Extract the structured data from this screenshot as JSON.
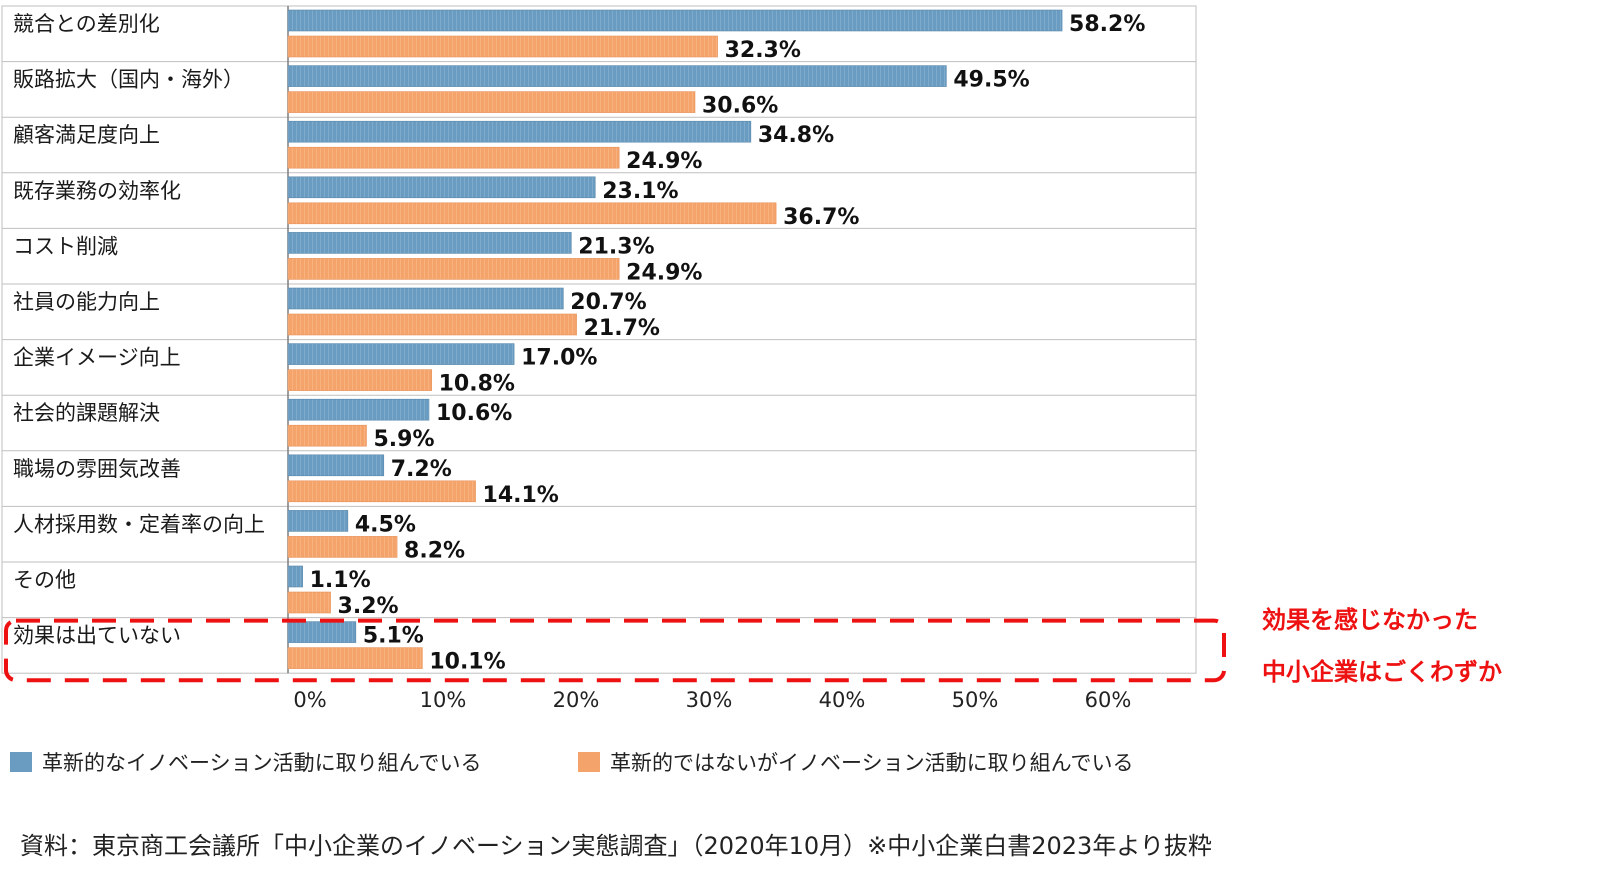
{
  "chart_data": {
    "type": "bar",
    "orientation": "horizontal",
    "categories": [
      "競合との差別化",
      "販路拡大（国内・海外）",
      "顧客満足度向上",
      "既存業務の効率化",
      "コスト削減",
      "社員の能力向上",
      "企業イメージ向上",
      "社会的課題解決",
      "職場の雰囲気改善",
      "人材採用数・定着率の向上",
      "その他",
      "効果は出ていない"
    ],
    "series": [
      {
        "name": "革新的なイノベーション活動に取り組んでいる",
        "color": "#6a9bc0",
        "values": [
          58.2,
          49.5,
          34.8,
          23.1,
          21.3,
          20.7,
          17.0,
          10.6,
          7.2,
          4.5,
          1.1,
          5.1
        ],
        "labels": [
          "58.2%",
          "49.5%",
          "34.8%",
          "23.1%",
          "21.3%",
          "20.7%",
          "17.0%",
          "10.6%",
          "7.2%",
          "4.5%",
          "1.1%",
          "5.1%"
        ]
      },
      {
        "name": "革新的ではないがイノベーション活動に取り組んでいる",
        "color": "#f4a36b",
        "values": [
          32.3,
          30.6,
          24.9,
          36.7,
          24.9,
          21.7,
          10.8,
          5.9,
          14.1,
          8.2,
          3.2,
          10.1
        ],
        "labels": [
          "32.3%",
          "30.6%",
          "24.9%",
          "36.7%",
          "24.9%",
          "21.7%",
          "10.8%",
          "5.9%",
          "14.1%",
          "8.2%",
          "3.2%",
          "10.1%"
        ]
      }
    ],
    "xlim": [
      0,
      70
    ],
    "ticks": [
      0,
      10,
      20,
      30,
      40,
      50,
      60
    ],
    "tick_labels": [
      "0%",
      "10%",
      "20%",
      "30%",
      "40%",
      "50%",
      "60%"
    ],
    "legend_position": "bottom",
    "highlight": {
      "category": "効果は出ていない",
      "color": "#ee1111",
      "callout_lines": [
        "効果を感じなかった",
        "中小企業はごくわずか"
      ]
    }
  },
  "source_note": "資料：東京商工会議所「中小企業のイノベーション実態調査」（2020年10月）※中小企業白書2023年より抜粋"
}
